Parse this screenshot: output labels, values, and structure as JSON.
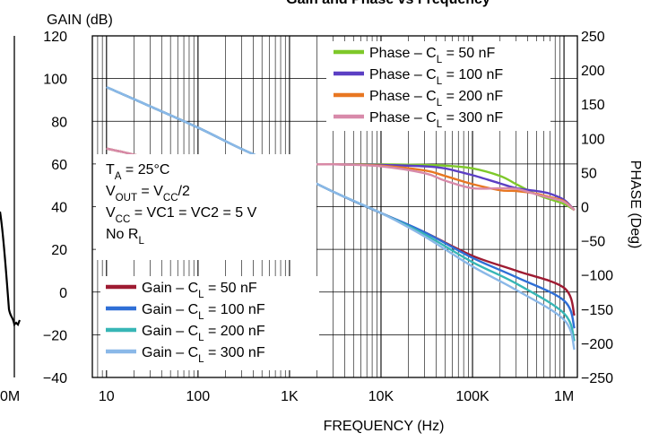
{
  "chart_data": [
    {
      "type": "line",
      "partial": true,
      "title": "",
      "xlabel": "",
      "ylabel": "",
      "x_tick_labels": [
        "0M"
      ],
      "y_tick_labels": [],
      "series": [
        {
          "name": "",
          "color": "#000000"
        }
      ]
    },
    {
      "type": "line",
      "title": "Gain and Phase vs Frequency",
      "title_visible": "Gain and Phase vs Frequency",
      "xlabel": "FREQUENCY (Hz)",
      "ylabel": "GAIN (dB)",
      "y2label": "PHASE (Deg)",
      "x_scale": "log",
      "xlim": [
        7,
        1400000
      ],
      "ylim": [
        -40,
        120
      ],
      "y2lim": [
        -250,
        250
      ],
      "x_ticks": [
        10,
        100,
        1000,
        10000,
        100000,
        1000000
      ],
      "x_tick_labels": [
        "10",
        "100",
        "1K",
        "10K",
        "100K",
        "1M"
      ],
      "y_ticks": [
        -40,
        -20,
        0,
        20,
        40,
        60,
        80,
        100,
        120
      ],
      "y_tick_labels": [
        "−40",
        "−20",
        "0",
        "20",
        "40",
        "60",
        "80",
        "100",
        "120"
      ],
      "y2_ticks": [
        -250,
        -200,
        -150,
        -100,
        -50,
        0,
        50,
        100,
        150,
        200,
        250
      ],
      "y2_tick_labels": [
        "−250",
        "−200",
        "−150",
        "−100",
        "−50",
        "0",
        "50",
        "100",
        "150",
        "200",
        "250"
      ],
      "grid": true,
      "conditions": [
        {
          "main": "T",
          "sub": "A",
          "rest": " = 25°C"
        },
        {
          "main": "V",
          "sub": "OUT",
          "rest": " = V",
          "sub2": "CC",
          "rest2": "/2"
        },
        {
          "main": "V",
          "sub": "CC",
          "rest": " = VC1 = VC2 = 5 V"
        },
        {
          "main": "No R",
          "sub": "L",
          "rest": ""
        }
      ],
      "legend_phase": [
        {
          "prefix": "Phase – C",
          "sub": "L",
          "rest": " = 50 nF",
          "color": "#7ec82a"
        },
        {
          "prefix": "Phase – C",
          "sub": "L",
          "rest": " = 100 nF",
          "color": "#5b3fc4"
        },
        {
          "prefix": "Phase – C",
          "sub": "L",
          "rest": " = 200 nF",
          "color": "#e87722"
        },
        {
          "prefix": "Phase – C",
          "sub": "L",
          "rest": " = 300 nF",
          "color": "#d88aaa"
        }
      ],
      "legend_gain": [
        {
          "prefix": "Gain – C",
          "sub": "L",
          "rest": " = 50 nF",
          "color": "#9e1b32"
        },
        {
          "prefix": "Gain – C",
          "sub": "L",
          "rest": " = 100 nF",
          "color": "#2f6fd6"
        },
        {
          "prefix": "Gain – C",
          "sub": "L",
          "rest": " = 200 nF",
          "color": "#37b6b6"
        },
        {
          "prefix": "Gain – C",
          "sub": "L",
          "rest": " = 300 nF",
          "color": "#8ab8e8"
        }
      ],
      "series": [
        {
          "name": "Phase – CL = 50 nF",
          "axis": "phase",
          "color": "#7ec82a",
          "x": [
            10,
            15,
            20,
            30,
            50,
            100,
            200,
            500,
            1000,
            3000,
            10000,
            30000,
            50000,
            100000,
            200000,
            300000,
            500000,
            700000,
            1000000,
            1300000
          ],
          "y": [
            85,
            80,
            76,
            71,
            67,
            63,
            62,
            62,
            62,
            62,
            62,
            61,
            60,
            56,
            45,
            33,
            18,
            11,
            4,
            -5
          ]
        },
        {
          "name": "Phase – CL = 100 nF",
          "axis": "phase",
          "color": "#5b3fc4",
          "x": [
            10,
            15,
            20,
            30,
            50,
            100,
            200,
            500,
            1000,
            3000,
            10000,
            30000,
            50000,
            100000,
            200000,
            300000,
            500000,
            700000,
            1000000,
            1300000
          ],
          "y": [
            85,
            80,
            76,
            71,
            67,
            63,
            62,
            62,
            62,
            62,
            61,
            59,
            56,
            46,
            34,
            27,
            23,
            19,
            10,
            -5
          ]
        },
        {
          "name": "Phase – CL = 200 nF",
          "axis": "phase",
          "color": "#e87722",
          "x": [
            10,
            15,
            20,
            30,
            50,
            100,
            200,
            500,
            1000,
            3000,
            10000,
            30000,
            50000,
            100000,
            200000,
            300000,
            500000,
            700000,
            1000000,
            1300000
          ],
          "y": [
            85,
            80,
            76,
            71,
            67,
            63,
            62,
            62,
            62,
            62,
            60,
            53,
            45,
            33,
            24,
            23,
            19,
            14,
            8,
            -5
          ]
        },
        {
          "name": "Phase – CL = 300 nF",
          "axis": "phase",
          "color": "#d88aaa",
          "x": [
            10,
            15,
            20,
            30,
            50,
            100,
            200,
            500,
            1000,
            3000,
            10000,
            30000,
            50000,
            100000,
            200000,
            300000,
            500000,
            700000,
            1000000,
            1300000
          ],
          "y": [
            85,
            80,
            76,
            71,
            67,
            63,
            62,
            62,
            62,
            62,
            59,
            49,
            38,
            27,
            27,
            26,
            18,
            13,
            7,
            -5
          ]
        },
        {
          "name": "Gain – CL = 50 nF",
          "axis": "gain",
          "color": "#9e1b32",
          "x": [
            10,
            30,
            100,
            300,
            1000,
            3000,
            10000,
            30000,
            100000,
            300000,
            1000000,
            1300000
          ],
          "y": [
            96,
            87,
            77,
            67,
            57,
            47,
            37,
            28,
            17,
            10,
            2,
            -11
          ]
        },
        {
          "name": "Gain – CL = 100 nF",
          "axis": "gain",
          "color": "#2f6fd6",
          "x": [
            10,
            30,
            100,
            300,
            1000,
            3000,
            10000,
            30000,
            100000,
            300000,
            1000000,
            1300000
          ],
          "y": [
            96,
            87,
            77,
            67,
            57,
            47,
            37,
            28,
            16,
            7,
            -4,
            -17
          ]
        },
        {
          "name": "Gain – CL = 200 nF",
          "axis": "gain",
          "color": "#37b6b6",
          "x": [
            10,
            30,
            100,
            300,
            1000,
            3000,
            10000,
            30000,
            100000,
            300000,
            1000000,
            1300000
          ],
          "y": [
            96,
            87,
            77,
            67,
            57,
            47,
            37,
            27,
            14,
            4,
            -10,
            -23
          ]
        },
        {
          "name": "Gain – CL = 300 nF",
          "axis": "gain",
          "color": "#8ab8e8",
          "x": [
            10,
            30,
            100,
            300,
            1000,
            3000,
            10000,
            30000,
            100000,
            300000,
            1000000,
            1300000
          ],
          "y": [
            96,
            87,
            77,
            67,
            57,
            47,
            37,
            26,
            12,
            1,
            -13,
            -27
          ]
        }
      ]
    }
  ]
}
